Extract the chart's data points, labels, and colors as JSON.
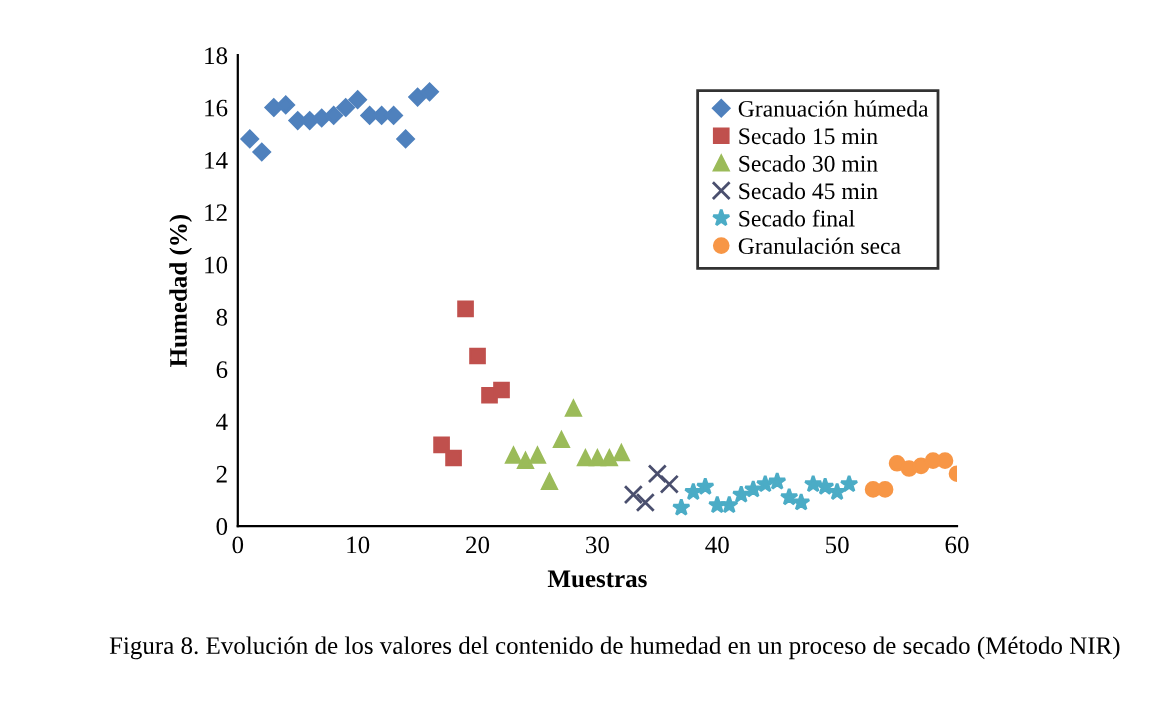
{
  "chart_data": {
    "type": "scatter",
    "xlabel": "Muestras",
    "ylabel": "Humedad (%)",
    "xlim": [
      0,
      60
    ],
    "xticks": [
      0,
      10,
      20,
      30,
      40,
      50,
      60
    ],
    "ylim": [
      0,
      18
    ],
    "yticks": [
      0,
      2,
      4,
      6,
      8,
      10,
      12,
      14,
      16,
      18
    ],
    "grid": false,
    "legend": "top right",
    "annotations": [
      "Figura 8. Evolución de los valores del contenido de humedad en un proceso de secado (Método NIR)"
    ],
    "series": [
      {
        "name": "Granuación húmeda",
        "color": "#4f81bd",
        "marker": "diamond",
        "x": [
          1,
          2,
          3,
          4,
          5,
          6,
          7,
          8,
          9,
          10,
          11,
          12,
          13,
          14,
          15,
          16
        ],
        "values": [
          14.8,
          14.3,
          16.0,
          16.1,
          15.5,
          15.5,
          15.6,
          15.7,
          16.0,
          16.3,
          15.7,
          15.7,
          15.7,
          14.8,
          16.4,
          16.6
        ]
      },
      {
        "name": "Secado 15 min",
        "color": "#c0504d",
        "marker": "square",
        "x": [
          17,
          18,
          19,
          20,
          21,
          22
        ],
        "values": [
          3.1,
          2.6,
          8.3,
          6.5,
          5.0,
          5.2
        ]
      },
      {
        "name": "Secado 30 min",
        "color": "#9bbb59",
        "marker": "triangle",
        "x": [
          23,
          24,
          25,
          26,
          27,
          28,
          29,
          30,
          31,
          32
        ],
        "values": [
          2.7,
          2.5,
          2.7,
          1.7,
          3.3,
          4.5,
          2.6,
          2.6,
          2.6,
          2.8
        ]
      },
      {
        "name": "Secado 45 min",
        "color": "#4a4f6e",
        "marker": "cross",
        "x": [
          33,
          34,
          35,
          36
        ],
        "values": [
          1.2,
          0.9,
          2.0,
          1.6
        ]
      },
      {
        "name": "Secado final",
        "color": "#4bacc6",
        "marker": "star",
        "x": [
          37,
          38,
          39,
          40,
          41,
          42,
          43,
          44,
          45,
          46,
          47,
          48,
          49,
          50,
          51
        ],
        "values": [
          0.7,
          1.3,
          1.5,
          0.8,
          0.8,
          1.2,
          1.4,
          1.6,
          1.7,
          1.1,
          0.9,
          1.6,
          1.5,
          1.3,
          1.6
        ]
      },
      {
        "name": "Granulación seca",
        "color": "#f79646",
        "marker": "circle",
        "x": [
          53,
          54,
          55,
          56,
          57,
          58,
          59,
          60
        ],
        "values": [
          1.4,
          1.4,
          2.4,
          2.2,
          2.3,
          2.5,
          2.5,
          2.0
        ]
      }
    ]
  }
}
